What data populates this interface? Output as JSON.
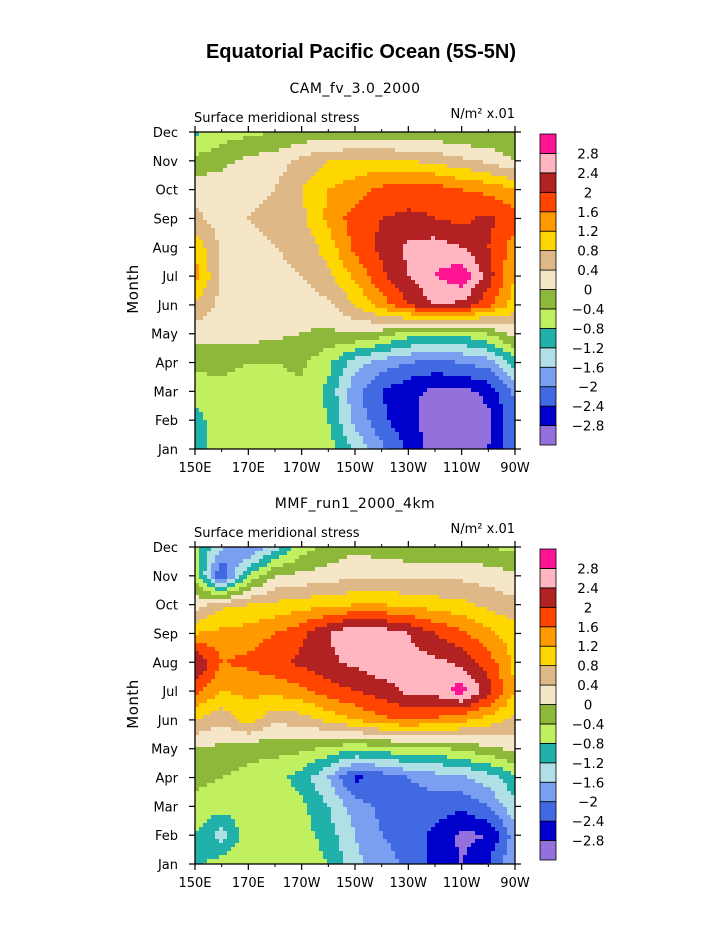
{
  "title": "Equatorial Pacific Ocean (5S-5N)",
  "chart_data": [
    {
      "type": "heatmap",
      "title": "CAM_fv_3.0_2000",
      "left_label": "Surface meridional stress",
      "right_label": "N/m² x.01",
      "ylabel": "Month",
      "x_ticks": [
        "150E",
        "170E",
        "170W",
        "150W",
        "130W",
        "110W",
        "90W"
      ],
      "x_values": [
        150,
        170,
        190,
        210,
        230,
        250,
        270
      ],
      "xlim": [
        150,
        270
      ],
      "y_ticks": [
        "Jan",
        "Feb",
        "Mar",
        "Apr",
        "May",
        "Jun",
        "Jul",
        "Aug",
        "Sep",
        "Oct",
        "Nov",
        "Dec"
      ],
      "ylim": [
        1,
        12
      ],
      "levels": [
        -2.8,
        -2.4,
        -2,
        -1.6,
        -1.2,
        -0.8,
        -0.4,
        0,
        0.4,
        0.8,
        1.2,
        1.6,
        2,
        2.4,
        2.8
      ],
      "colors": [
        "#9370db",
        "#0000cd",
        "#4169e1",
        "#7b9ff0",
        "#b0e0e6",
        "#20b2aa",
        "#c0f060",
        "#8db83a",
        "#f5e6c8",
        "#deb887",
        "#ffd700",
        "#ff9900",
        "#ff4500",
        "#b22222",
        "#ffb6c1",
        "#ff1493"
      ],
      "x": [
        150,
        160,
        170,
        180,
        190,
        200,
        210,
        220,
        230,
        240,
        250,
        260,
        270
      ],
      "z": [
        [
          -1.0,
          -0.6,
          -0.5,
          -0.5,
          -0.4,
          -0.6,
          -1.3,
          -1.9,
          -2.5,
          -3.0,
          -3.1,
          -2.8,
          -2.0
        ],
        [
          -1.0,
          -0.5,
          -0.6,
          -0.6,
          -0.5,
          -0.8,
          -1.7,
          -2.3,
          -2.7,
          -3.0,
          -3.1,
          -2.9,
          -2.1
        ],
        [
          -0.6,
          -0.5,
          -0.6,
          -0.6,
          -0.5,
          -0.9,
          -1.9,
          -2.4,
          -2.7,
          -2.9,
          -2.9,
          -2.7,
          -1.9
        ],
        [
          -0.3,
          -0.3,
          -0.4,
          -0.4,
          -0.3,
          -0.7,
          -1.4,
          -1.8,
          -2.0,
          -2.1,
          -2.0,
          -1.8,
          -1.0
        ],
        [
          0.2,
          0.2,
          0.2,
          0.1,
          0.0,
          -0.1,
          0.0,
          -0.2,
          -0.6,
          -0.7,
          -0.7,
          -0.4,
          0.2
        ],
        [
          0.7,
          0.3,
          0.2,
          0.2,
          0.2,
          0.3,
          0.8,
          1.4,
          2.0,
          2.4,
          2.3,
          1.7,
          1.0
        ],
        [
          1.4,
          0.3,
          0.2,
          0.3,
          0.4,
          0.7,
          1.3,
          1.9,
          2.4,
          2.8,
          3.1,
          2.2,
          1.2
        ],
        [
          1.1,
          0.3,
          0.3,
          0.4,
          0.5,
          1.0,
          1.7,
          2.1,
          2.5,
          2.6,
          2.4,
          2.0,
          1.4
        ],
        [
          0.5,
          0.2,
          0.4,
          0.5,
          0.7,
          1.3,
          1.8,
          2.0,
          2.1,
          2.0,
          1.9,
          2.1,
          1.8
        ],
        [
          0.3,
          0.2,
          0.3,
          0.4,
          0.8,
          1.2,
          1.4,
          1.7,
          1.8,
          1.8,
          1.6,
          1.5,
          1.2
        ],
        [
          -0.3,
          -0.1,
          0.1,
          0.2,
          0.5,
          0.8,
          0.9,
          0.9,
          0.8,
          0.7,
          0.5,
          0.3,
          0.0
        ],
        [
          -0.9,
          -0.6,
          -0.5,
          -0.4,
          -0.3,
          -0.3,
          -0.4,
          -0.4,
          -0.3,
          -0.3,
          -0.4,
          -0.4,
          -0.4
        ]
      ]
    },
    {
      "type": "heatmap",
      "title": "MMF_run1_2000_4km",
      "left_label": "Surface meridional stress",
      "right_label": "N/m² x.01",
      "ylabel": "Month",
      "x_ticks": [
        "150E",
        "170E",
        "170W",
        "150W",
        "130W",
        "110W",
        "90W"
      ],
      "x_values": [
        150,
        170,
        190,
        210,
        230,
        250,
        270
      ],
      "xlim": [
        150,
        270
      ],
      "y_ticks": [
        "Jan",
        "Feb",
        "Mar",
        "Apr",
        "May",
        "Jun",
        "Jul",
        "Aug",
        "Sep",
        "Oct",
        "Nov",
        "Dec"
      ],
      "ylim": [
        1,
        12
      ],
      "levels": [
        -2.8,
        -2.4,
        -2,
        -1.6,
        -1.2,
        -0.8,
        -0.4,
        0,
        0.4,
        0.8,
        1.2,
        1.6,
        2,
        2.4,
        2.8
      ],
      "colors": [
        "#9370db",
        "#0000cd",
        "#4169e1",
        "#7b9ff0",
        "#b0e0e6",
        "#20b2aa",
        "#c0f060",
        "#8db83a",
        "#f5e6c8",
        "#deb887",
        "#ffd700",
        "#ff9900",
        "#ff4500",
        "#b22222",
        "#ffb6c1",
        "#ff1493"
      ],
      "x": [
        150,
        160,
        170,
        180,
        190,
        200,
        210,
        220,
        230,
        240,
        250,
        260,
        270
      ],
      "z": [
        [
          -0.9,
          -0.6,
          -0.5,
          -0.4,
          -0.5,
          -0.8,
          -1.5,
          -1.8,
          -2.1,
          -2.5,
          -2.8,
          -2.4,
          -1.6
        ],
        [
          -0.8,
          -1.4,
          -0.5,
          -0.4,
          -0.6,
          -1.0,
          -1.6,
          -2.0,
          -2.2,
          -2.5,
          -2.9,
          -2.8,
          -1.8
        ],
        [
          -0.5,
          -0.6,
          -0.6,
          -0.5,
          -0.7,
          -1.2,
          -1.8,
          -2.1,
          -2.2,
          -2.2,
          -2.3,
          -2.0,
          -1.3
        ],
        [
          -0.3,
          -0.4,
          -0.5,
          -0.6,
          -1.0,
          -1.6,
          -2.5,
          -2.3,
          -2.0,
          -1.8,
          -1.7,
          -1.4,
          -0.9
        ],
        [
          0.0,
          -0.1,
          -0.3,
          -0.3,
          -0.3,
          -0.5,
          -0.7,
          -0.6,
          -0.5,
          -0.5,
          -0.3,
          -0.1,
          0.1
        ],
        [
          0.8,
          0.5,
          1.0,
          0.5,
          0.6,
          0.9,
          1.2,
          1.5,
          1.6,
          1.5,
          1.3,
          1.0,
          0.7
        ],
        [
          1.7,
          1.2,
          1.3,
          1.3,
          1.5,
          1.8,
          2.0,
          2.2,
          2.5,
          2.6,
          3.0,
          2.2,
          1.2
        ],
        [
          2.5,
          1.6,
          1.7,
          1.9,
          2.1,
          2.3,
          2.5,
          2.7,
          2.6,
          2.5,
          2.3,
          1.8,
          1.1
        ],
        [
          1.2,
          1.3,
          1.4,
          1.6,
          1.9,
          2.4,
          2.8,
          2.7,
          2.4,
          2.0,
          1.7,
          1.3,
          1.0
        ],
        [
          0.2,
          0.7,
          0.8,
          0.9,
          1.0,
          1.1,
          1.2,
          1.2,
          1.1,
          1.0,
          0.9,
          0.7,
          0.5
        ],
        [
          -0.5,
          -2.5,
          -0.8,
          0.0,
          0.1,
          0.2,
          0.3,
          0.3,
          0.3,
          0.3,
          0.3,
          0.2,
          0.1
        ],
        [
          -0.7,
          -1.5,
          -2.1,
          -1.4,
          -0.6,
          -0.3,
          -0.1,
          -0.2,
          -0.3,
          -0.3,
          -0.3,
          -0.4,
          -0.5
        ]
      ]
    }
  ]
}
